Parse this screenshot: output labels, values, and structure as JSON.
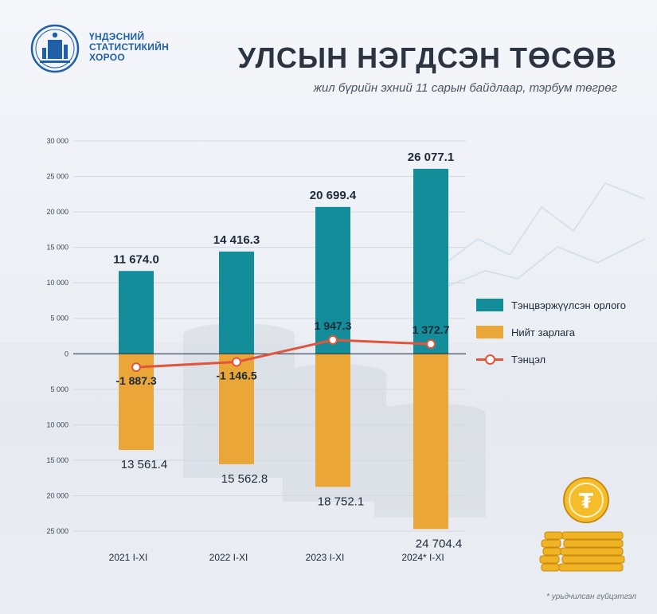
{
  "header": {
    "org_line1": "ҮНДЭСНИЙ",
    "org_line2": "СТАТИСТИКИЙН",
    "org_line3": "ХОРОО",
    "title": "УЛСЫН НЭГДСЭН ТӨСӨВ",
    "subtitle": "жил бүрийн эхний 11 сарын байдлаар, тэрбум төгрөг"
  },
  "footnote": "* урьдчилсан гүйцэтгэл",
  "colors": {
    "revenue": "#138d99",
    "expenditure": "#eaa637",
    "balance": "#e2553d",
    "brand": "#1f5fa8"
  },
  "chart_data": {
    "type": "bar",
    "categories": [
      "2021 I-XI",
      "2022 I-XI",
      "2023 I-XI",
      "2024* I-XI"
    ],
    "series": [
      {
        "name": "Тэнцвэржүүлсэн орлого",
        "type": "bar",
        "values": [
          11674.0,
          14416.3,
          20699.4,
          26077.1
        ],
        "labels": [
          "11 674.0",
          "14 416.3",
          "20 699.4",
          "26 077.1"
        ]
      },
      {
        "name": "Нийт зарлага",
        "type": "bar",
        "values": [
          -13561.4,
          -15562.8,
          -18752.1,
          -24704.4
        ],
        "labels": [
          "13 561.4",
          "15 562.8",
          "18 752.1",
          "24 704.4"
        ]
      },
      {
        "name": "Тэнцэл",
        "type": "line",
        "values": [
          -1887.3,
          -1146.5,
          1947.3,
          1372.7
        ],
        "labels": [
          "-1 887.3",
          "-1 146.5",
          "1 947.3",
          "1 372.7"
        ]
      }
    ],
    "y_ticks": [
      30000,
      25000,
      20000,
      15000,
      10000,
      5000,
      0,
      -5000,
      -10000,
      -15000,
      -20000,
      -25000
    ],
    "y_tick_labels": [
      "30 000",
      "25 000",
      "20 000",
      "15 000",
      "10 000",
      "5 000",
      "0",
      "5 000",
      "10 000",
      "15 000",
      "20 000",
      "25 000"
    ],
    "ylim": [
      -25000,
      30000
    ],
    "grid": true,
    "legend_position": "right"
  }
}
